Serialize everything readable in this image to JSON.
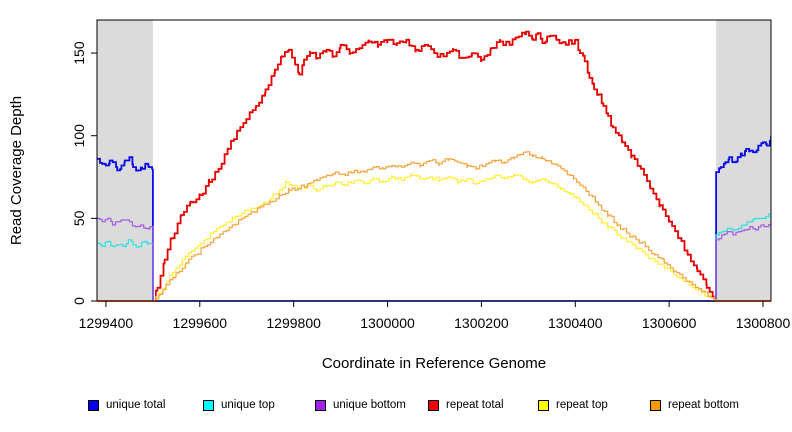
{
  "chart_data": {
    "type": "line",
    "title": "",
    "xlabel": "Coordinate in Reference Genome",
    "ylabel": "Read Coverage Depth",
    "xlim": [
      1299381,
      1300817
    ],
    "ylim": [
      0,
      170
    ],
    "xticks": [
      1299400,
      1299600,
      1299800,
      1300000,
      1300200,
      1300400,
      1300600,
      1300800
    ],
    "yticks": [
      0,
      50,
      100,
      150
    ],
    "grid": false,
    "legend_position": "bottom",
    "shade_color": "#DBDBDB",
    "shaded_regions": [
      {
        "from": 1299381,
        "to": 1299500
      },
      {
        "from": 1300700,
        "to": 1300817
      }
    ],
    "series": [
      {
        "name": "unique total",
        "color": "#0A0AEE",
        "width": 1.8,
        "amp": 1.6,
        "points": [
          [
            1299381,
            86
          ],
          [
            1299392,
            83
          ],
          [
            1299400,
            82
          ],
          [
            1299408,
            85
          ],
          [
            1299415,
            84
          ],
          [
            1299424,
            79
          ],
          [
            1299433,
            82
          ],
          [
            1299440,
            85
          ],
          [
            1299450,
            87
          ],
          [
            1299458,
            81
          ],
          [
            1299468,
            79
          ],
          [
            1299477,
            80
          ],
          [
            1299484,
            83
          ],
          [
            1299492,
            81
          ],
          [
            1299500,
            80
          ],
          [
            1299500,
            0
          ],
          [
            1300700,
            0
          ],
          [
            1300700,
            78
          ],
          [
            1300710,
            81
          ],
          [
            1300720,
            84
          ],
          [
            1300728,
            87
          ],
          [
            1300736,
            84
          ],
          [
            1300746,
            87
          ],
          [
            1300755,
            88
          ],
          [
            1300764,
            92
          ],
          [
            1300772,
            91
          ],
          [
            1300780,
            90
          ],
          [
            1300790,
            94
          ],
          [
            1300800,
            96
          ],
          [
            1300808,
            94
          ],
          [
            1300817,
            100
          ]
        ]
      },
      {
        "name": "unique top",
        "color": "#2FE0E0",
        "width": 1.2,
        "amp": 1.1,
        "points": [
          [
            1299381,
            35
          ],
          [
            1299392,
            33
          ],
          [
            1299404,
            36
          ],
          [
            1299414,
            33
          ],
          [
            1299425,
            34
          ],
          [
            1299437,
            33
          ],
          [
            1299448,
            37
          ],
          [
            1299458,
            34
          ],
          [
            1299470,
            33
          ],
          [
            1299482,
            36
          ],
          [
            1299492,
            35
          ],
          [
            1299500,
            34
          ],
          [
            1299500,
            0
          ],
          [
            1300700,
            0
          ],
          [
            1300700,
            40
          ],
          [
            1300712,
            42
          ],
          [
            1300724,
            44
          ],
          [
            1300736,
            43
          ],
          [
            1300748,
            44
          ],
          [
            1300760,
            46
          ],
          [
            1300772,
            48
          ],
          [
            1300784,
            50
          ],
          [
            1300796,
            50
          ],
          [
            1300806,
            51
          ],
          [
            1300817,
            53
          ]
        ]
      },
      {
        "name": "unique bottom",
        "color": "#A25CE6",
        "width": 1.2,
        "amp": 1.1,
        "points": [
          [
            1299381,
            50
          ],
          [
            1299392,
            48
          ],
          [
            1299404,
            50
          ],
          [
            1299414,
            46
          ],
          [
            1299426,
            48
          ],
          [
            1299438,
            49
          ],
          [
            1299450,
            48
          ],
          [
            1299462,
            45
          ],
          [
            1299474,
            46
          ],
          [
            1299484,
            44
          ],
          [
            1299494,
            45
          ],
          [
            1299500,
            43
          ],
          [
            1299500,
            0
          ],
          [
            1300700,
            0
          ],
          [
            1300700,
            37
          ],
          [
            1300712,
            40
          ],
          [
            1300724,
            42
          ],
          [
            1300736,
            40
          ],
          [
            1300748,
            42
          ],
          [
            1300760,
            43
          ],
          [
            1300772,
            45
          ],
          [
            1300784,
            43
          ],
          [
            1300796,
            46
          ],
          [
            1300806,
            45
          ],
          [
            1300817,
            48
          ]
        ]
      },
      {
        "name": "repeat total",
        "color": "#E60000",
        "width": 1.8,
        "amp": 1.8,
        "points": [
          [
            1299381,
            0
          ],
          [
            1299500,
            0
          ],
          [
            1299510,
            8
          ],
          [
            1299525,
            25
          ],
          [
            1299540,
            38
          ],
          [
            1299560,
            52
          ],
          [
            1299580,
            60
          ],
          [
            1299600,
            64
          ],
          [
            1299620,
            72
          ],
          [
            1299640,
            80
          ],
          [
            1299660,
            92
          ],
          [
            1299680,
            103
          ],
          [
            1299700,
            110
          ],
          [
            1299720,
            118
          ],
          [
            1299740,
            128
          ],
          [
            1299760,
            140
          ],
          [
            1299775,
            148
          ],
          [
            1299790,
            152
          ],
          [
            1299803,
            143
          ],
          [
            1299812,
            137
          ],
          [
            1299822,
            146
          ],
          [
            1299835,
            150
          ],
          [
            1299850,
            147
          ],
          [
            1299870,
            152
          ],
          [
            1299885,
            148
          ],
          [
            1299900,
            155
          ],
          [
            1299920,
            150
          ],
          [
            1299940,
            153
          ],
          [
            1299960,
            157
          ],
          [
            1299980,
            155
          ],
          [
            1300000,
            158
          ],
          [
            1300020,
            156
          ],
          [
            1300040,
            158
          ],
          [
            1300060,
            152
          ],
          [
            1300080,
            155
          ],
          [
            1300100,
            150
          ],
          [
            1300120,
            148
          ],
          [
            1300140,
            152
          ],
          [
            1300160,
            147
          ],
          [
            1300180,
            150
          ],
          [
            1300200,
            146
          ],
          [
            1300220,
            153
          ],
          [
            1300240,
            157
          ],
          [
            1300260,
            155
          ],
          [
            1300280,
            160
          ],
          [
            1300295,
            163
          ],
          [
            1300310,
            158
          ],
          [
            1300320,
            162
          ],
          [
            1300330,
            156
          ],
          [
            1300340,
            160
          ],
          [
            1300360,
            158
          ],
          [
            1300380,
            155
          ],
          [
            1300400,
            158
          ],
          [
            1300410,
            150
          ],
          [
            1300420,
            145
          ],
          [
            1300430,
            135
          ],
          [
            1300440,
            128
          ],
          [
            1300450,
            125
          ],
          [
            1300460,
            118
          ],
          [
            1300470,
            112
          ],
          [
            1300480,
            105
          ],
          [
            1300500,
            96
          ],
          [
            1300520,
            88
          ],
          [
            1300540,
            80
          ],
          [
            1300560,
            68
          ],
          [
            1300580,
            58
          ],
          [
            1300600,
            48
          ],
          [
            1300620,
            38
          ],
          [
            1300640,
            28
          ],
          [
            1300660,
            18
          ],
          [
            1300680,
            8
          ],
          [
            1300695,
            2
          ],
          [
            1300700,
            0
          ],
          [
            1300817,
            0
          ]
        ]
      },
      {
        "name": "repeat top",
        "color": "#FFEE33",
        "width": 1.2,
        "amp": 1.2,
        "points": [
          [
            1299381,
            0
          ],
          [
            1299500,
            0
          ],
          [
            1299515,
            5
          ],
          [
            1299530,
            12
          ],
          [
            1299550,
            20
          ],
          [
            1299570,
            27
          ],
          [
            1299590,
            32
          ],
          [
            1299610,
            37
          ],
          [
            1299630,
            42
          ],
          [
            1299650,
            46
          ],
          [
            1299670,
            50
          ],
          [
            1299690,
            53
          ],
          [
            1299710,
            56
          ],
          [
            1299730,
            58
          ],
          [
            1299750,
            62
          ],
          [
            1299770,
            67
          ],
          [
            1299785,
            72
          ],
          [
            1299795,
            70
          ],
          [
            1299810,
            68
          ],
          [
            1299830,
            70
          ],
          [
            1299850,
            67
          ],
          [
            1299870,
            70
          ],
          [
            1299890,
            72
          ],
          [
            1299910,
            70
          ],
          [
            1299930,
            73
          ],
          [
            1299950,
            71
          ],
          [
            1299970,
            74
          ],
          [
            1299990,
            72
          ],
          [
            1300010,
            75
          ],
          [
            1300030,
            73
          ],
          [
            1300050,
            76
          ],
          [
            1300070,
            74
          ],
          [
            1300090,
            75
          ],
          [
            1300110,
            73
          ],
          [
            1300130,
            75
          ],
          [
            1300150,
            72
          ],
          [
            1300170,
            74
          ],
          [
            1300190,
            71
          ],
          [
            1300210,
            74
          ],
          [
            1300230,
            76
          ],
          [
            1300250,
            74
          ],
          [
            1300270,
            76
          ],
          [
            1300290,
            74
          ],
          [
            1300310,
            72
          ],
          [
            1300330,
            74
          ],
          [
            1300350,
            71
          ],
          [
            1300370,
            68
          ],
          [
            1300390,
            65
          ],
          [
            1300410,
            60
          ],
          [
            1300430,
            55
          ],
          [
            1300450,
            50
          ],
          [
            1300470,
            45
          ],
          [
            1300490,
            40
          ],
          [
            1300510,
            36
          ],
          [
            1300530,
            32
          ],
          [
            1300550,
            28
          ],
          [
            1300570,
            24
          ],
          [
            1300590,
            20
          ],
          [
            1300610,
            16
          ],
          [
            1300630,
            12
          ],
          [
            1300650,
            8
          ],
          [
            1300670,
            5
          ],
          [
            1300690,
            2
          ],
          [
            1300700,
            0
          ],
          [
            1300817,
            0
          ]
        ]
      },
      {
        "name": "repeat bottom",
        "color": "#F7A23B",
        "width": 1.2,
        "amp": 1.2,
        "points": [
          [
            1299381,
            0
          ],
          [
            1299500,
            0
          ],
          [
            1299515,
            4
          ],
          [
            1299530,
            10
          ],
          [
            1299550,
            17
          ],
          [
            1299570,
            23
          ],
          [
            1299590,
            28
          ],
          [
            1299610,
            33
          ],
          [
            1299630,
            38
          ],
          [
            1299650,
            42
          ],
          [
            1299670,
            46
          ],
          [
            1299690,
            50
          ],
          [
            1299710,
            54
          ],
          [
            1299730,
            57
          ],
          [
            1299750,
            60
          ],
          [
            1299770,
            64
          ],
          [
            1299790,
            67
          ],
          [
            1299810,
            68
          ],
          [
            1299830,
            71
          ],
          [
            1299850,
            73
          ],
          [
            1299870,
            76
          ],
          [
            1299890,
            78
          ],
          [
            1299910,
            76
          ],
          [
            1299930,
            79
          ],
          [
            1299950,
            78
          ],
          [
            1299970,
            81
          ],
          [
            1299990,
            80
          ],
          [
            1300010,
            82
          ],
          [
            1300030,
            81
          ],
          [
            1300050,
            84
          ],
          [
            1300070,
            82
          ],
          [
            1300090,
            85
          ],
          [
            1300110,
            83
          ],
          [
            1300130,
            86
          ],
          [
            1300150,
            84
          ],
          [
            1300170,
            82
          ],
          [
            1300190,
            80
          ],
          [
            1300210,
            83
          ],
          [
            1300230,
            85
          ],
          [
            1300250,
            84
          ],
          [
            1300270,
            87
          ],
          [
            1300290,
            90
          ],
          [
            1300310,
            88
          ],
          [
            1300330,
            86
          ],
          [
            1300350,
            83
          ],
          [
            1300370,
            80
          ],
          [
            1300390,
            76
          ],
          [
            1300410,
            70
          ],
          [
            1300430,
            64
          ],
          [
            1300450,
            58
          ],
          [
            1300470,
            52
          ],
          [
            1300490,
            46
          ],
          [
            1300510,
            41
          ],
          [
            1300530,
            37
          ],
          [
            1300550,
            33
          ],
          [
            1300570,
            28
          ],
          [
            1300590,
            23
          ],
          [
            1300610,
            18
          ],
          [
            1300630,
            14
          ],
          [
            1300650,
            10
          ],
          [
            1300670,
            6
          ],
          [
            1300690,
            2
          ],
          [
            1300700,
            0
          ],
          [
            1300817,
            0
          ]
        ]
      }
    ],
    "legend": {
      "items": [
        {
          "label": "unique total",
          "color": "#0000EE"
        },
        {
          "label": "unique top",
          "color": "#00FFFF"
        },
        {
          "label": "unique bottom",
          "color": "#A020F0"
        },
        {
          "label": "repeat total",
          "color": "#EE0000"
        },
        {
          "label": "repeat top",
          "color": "#FFFF00"
        },
        {
          "label": "repeat bottom",
          "color": "#FF9900"
        }
      ]
    }
  }
}
